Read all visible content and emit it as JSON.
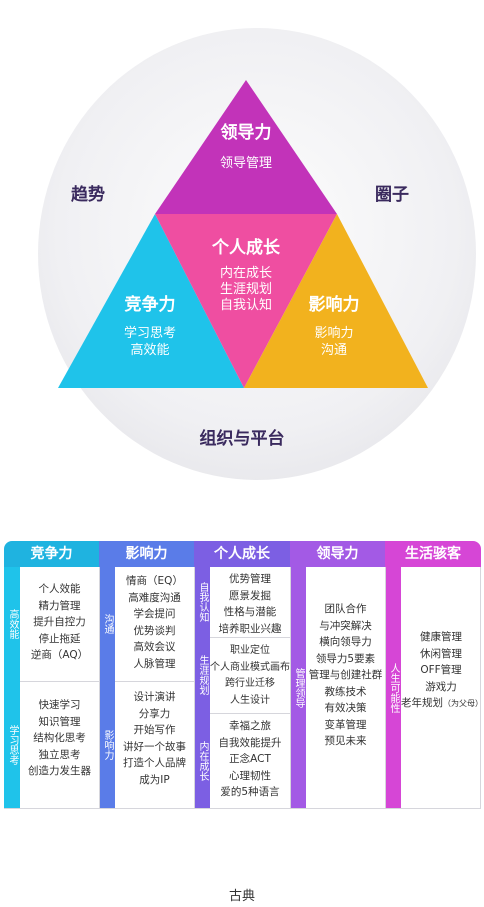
{
  "diagram": {
    "top": {
      "title": "领导力",
      "items": [
        "领导管理"
      ]
    },
    "center": {
      "title": "个人成长",
      "items": [
        "内在成长",
        "生涯规划",
        "自我认知"
      ]
    },
    "left": {
      "title": "竞争力",
      "items": [
        "学习思考",
        "高效能"
      ]
    },
    "right": {
      "title": "影响力",
      "items": [
        "影响力",
        "沟通"
      ]
    },
    "outer_left": "趋势",
    "outer_right": "圈子",
    "outer_bottom": "组织与平台",
    "colors": {
      "top": "#c233b9",
      "center": "#ef4ea1",
      "left": "#1fc3ea",
      "right": "#f2b21e"
    }
  },
  "table": {
    "headers": [
      "竞争力",
      "影响力",
      "个人成长",
      "领导力",
      "生活骇客"
    ],
    "header_colors": [
      "#1fb3e0",
      "#5a7ce8",
      "#7c5fe3",
      "#a35ae5",
      "#d646d6"
    ],
    "columns": [
      {
        "sections": [
          {
            "label": "高效能",
            "items": [
              "个人效能",
              "精力管理",
              "提升自控力",
              "停止拖延",
              "逆商（AQ）"
            ]
          },
          {
            "label": "学习思考",
            "items": [
              "快速学习",
              "知识管理",
              "结构化思考",
              "独立思考",
              "创造力发生器"
            ]
          }
        ]
      },
      {
        "sections": [
          {
            "label": "沟通",
            "items": [
              "情商（EQ）",
              "高难度沟通",
              "学会提问",
              "优势谈判",
              "高效会议",
              "人脉管理"
            ]
          },
          {
            "label": "影响力",
            "items": [
              "设计演讲",
              "分享力",
              "开始写作",
              "讲好一个故事",
              "打造个人品牌",
              "成为IP"
            ]
          }
        ]
      },
      {
        "sections": [
          {
            "label": "自我认知",
            "items": [
              "优势管理",
              "愿景发掘",
              "性格与潜能",
              "培养职业兴趣"
            ]
          },
          {
            "label": "生涯规划",
            "items": [
              "职业定位",
              "个人商业模式画布",
              "跨行业迁移",
              "人生设计"
            ]
          },
          {
            "label": "内在成长",
            "items": [
              "幸福之旅",
              "自我效能提升",
              "正念ACT",
              "心理韧性",
              "爱的5种语言"
            ]
          }
        ]
      },
      {
        "sections": [
          {
            "label": "管理领导",
            "items": [
              "团队合作",
              "与冲突解决",
              "横向领导力",
              "领导力5要素",
              "管理与创建社群",
              "教练技术",
              "有效决策",
              "变革管理",
              "预见未来"
            ]
          }
        ]
      },
      {
        "sections": [
          {
            "label": "人生可能性",
            "items": [
              "健康管理",
              "休闲管理",
              "OFF管理",
              "游戏力",
              "老年规划"
            ],
            "note": "（为父母）"
          }
        ]
      }
    ]
  },
  "footer": "古典"
}
